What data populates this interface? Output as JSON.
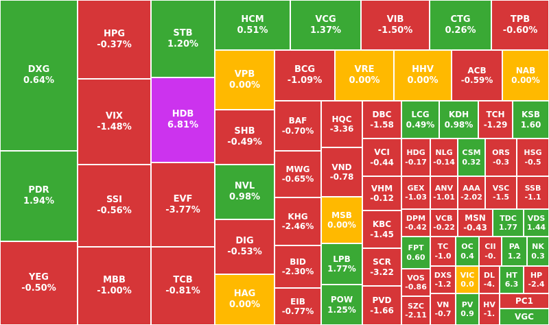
{
  "tiles": [
    {
      "ticker": "DXG",
      "change": "0.64%"
    },
    {
      "ticker": "PDR",
      "change": "1.94%"
    },
    {
      "ticker": "YEG",
      "change": "-0.50%"
    },
    {
      "ticker": "HPG",
      "change": "-0.37%"
    },
    {
      "ticker": "VIX",
      "change": "-1.48%"
    },
    {
      "ticker": "SSI",
      "change": "-0.56%"
    },
    {
      "ticker": "MBB",
      "change": "-1.00%"
    },
    {
      "ticker": "STB",
      "change": "1.20%"
    },
    {
      "ticker": "HDB",
      "change": "6.81%"
    },
    {
      "ticker": "EVF",
      "change": "-3.77%"
    },
    {
      "ticker": "TCB",
      "change": "-0.81%"
    },
    {
      "ticker": "HCM",
      "change": "0.51%"
    },
    {
      "ticker": "VCG",
      "change": "1.37%"
    },
    {
      "ticker": "VIB",
      "change": "-1.50%"
    },
    {
      "ticker": "CTG",
      "change": "0.26%"
    },
    {
      "ticker": "TPB",
      "change": "-0.60%"
    },
    {
      "ticker": "VPB",
      "change": "0.00%"
    },
    {
      "ticker": "SHB",
      "change": "-0.49%"
    },
    {
      "ticker": "NVL",
      "change": "0.98%"
    },
    {
      "ticker": "DIG",
      "change": "-0.53%"
    },
    {
      "ticker": "HAG",
      "change": "0.00%"
    },
    {
      "ticker": "BCG",
      "change": "-1.09%"
    },
    {
      "ticker": "VRE",
      "change": "0.00%"
    },
    {
      "ticker": "HHV",
      "change": "0.00%"
    },
    {
      "ticker": "ACB",
      "change": "-0.59%"
    },
    {
      "ticker": "NAB",
      "change": "0.00%"
    },
    {
      "ticker": "BAF",
      "change": "-0.70%"
    },
    {
      "ticker": "MWG",
      "change": "-0.65%"
    },
    {
      "ticker": "KHG",
      "change": "-2.46%"
    },
    {
      "ticker": "BID",
      "change": "-2.30%"
    },
    {
      "ticker": "EIB",
      "change": "-0.77%"
    },
    {
      "ticker": "HQC",
      "change": "-3.36"
    },
    {
      "ticker": "VND",
      "change": "-0.78"
    },
    {
      "ticker": "MSB",
      "change": "0.00%"
    },
    {
      "ticker": "LPB",
      "change": "1.77%"
    },
    {
      "ticker": "POW",
      "change": "1.25%"
    },
    {
      "ticker": "DBC",
      "change": "-1.58"
    },
    {
      "ticker": "VCI",
      "change": "-0.44"
    },
    {
      "ticker": "VHM",
      "change": "-0.12"
    },
    {
      "ticker": "KBC",
      "change": "-1.45"
    },
    {
      "ticker": "SCR",
      "change": "-3.22"
    },
    {
      "ticker": "PVD",
      "change": "-1.66"
    },
    {
      "ticker": "LCG",
      "change": "0.49%"
    },
    {
      "ticker": "KDH",
      "change": "0.98%"
    },
    {
      "ticker": "TCH",
      "change": "-1.29"
    },
    {
      "ticker": "KSB",
      "change": "1.60"
    },
    {
      "ticker": "HDG",
      "change": "-0.17"
    },
    {
      "ticker": "NLG",
      "change": "-0.14"
    },
    {
      "ticker": "CSM",
      "change": "0.32"
    },
    {
      "ticker": "ORS",
      "change": "-0.3"
    },
    {
      "ticker": "HSG",
      "change": "-0.5"
    },
    {
      "ticker": "GEX",
      "change": "-1.03"
    },
    {
      "ticker": "ANV",
      "change": "-1.01"
    },
    {
      "ticker": "AAA",
      "change": "-2.02"
    },
    {
      "ticker": "VSC",
      "change": "-1.5"
    },
    {
      "ticker": "SSB",
      "change": "-1.1"
    },
    {
      "ticker": "DPM",
      "change": "-0.42"
    },
    {
      "ticker": "VCB",
      "change": "-0.22"
    },
    {
      "ticker": "MSN",
      "change": "-0.43"
    },
    {
      "ticker": "TDC",
      "change": "1.77"
    },
    {
      "ticker": "VDS",
      "change": "1.44"
    },
    {
      "ticker": "FPT",
      "change": "0.60"
    },
    {
      "ticker": "VOS",
      "change": "-0.86"
    },
    {
      "ticker": "SZC",
      "change": "-2.11"
    },
    {
      "ticker": "TC",
      "change": "-1.0"
    },
    {
      "ticker": "OC",
      "change": "0.4"
    },
    {
      "ticker": "CII",
      "change": "-0."
    },
    {
      "ticker": "PA",
      "change": "1.2"
    },
    {
      "ticker": "NK",
      "change": "0.3"
    },
    {
      "ticker": "DXS",
      "change": "-1.2"
    },
    {
      "ticker": "VIC",
      "change": "0.0"
    },
    {
      "ticker": "DL",
      "change": "-4."
    },
    {
      "ticker": "HT",
      "change": "6.3"
    },
    {
      "ticker": "HP",
      "change": "-2.4"
    },
    {
      "ticker": "VN",
      "change": "-0.7"
    },
    {
      "ticker": "PV",
      "change": "0.9"
    },
    {
      "ticker": "HV",
      "change": "-1."
    },
    {
      "ticker": "PC1",
      "color": "#d63638"
    },
    {
      "ticker": "VGC",
      "color": "#3aa935"
    }
  ]
}
